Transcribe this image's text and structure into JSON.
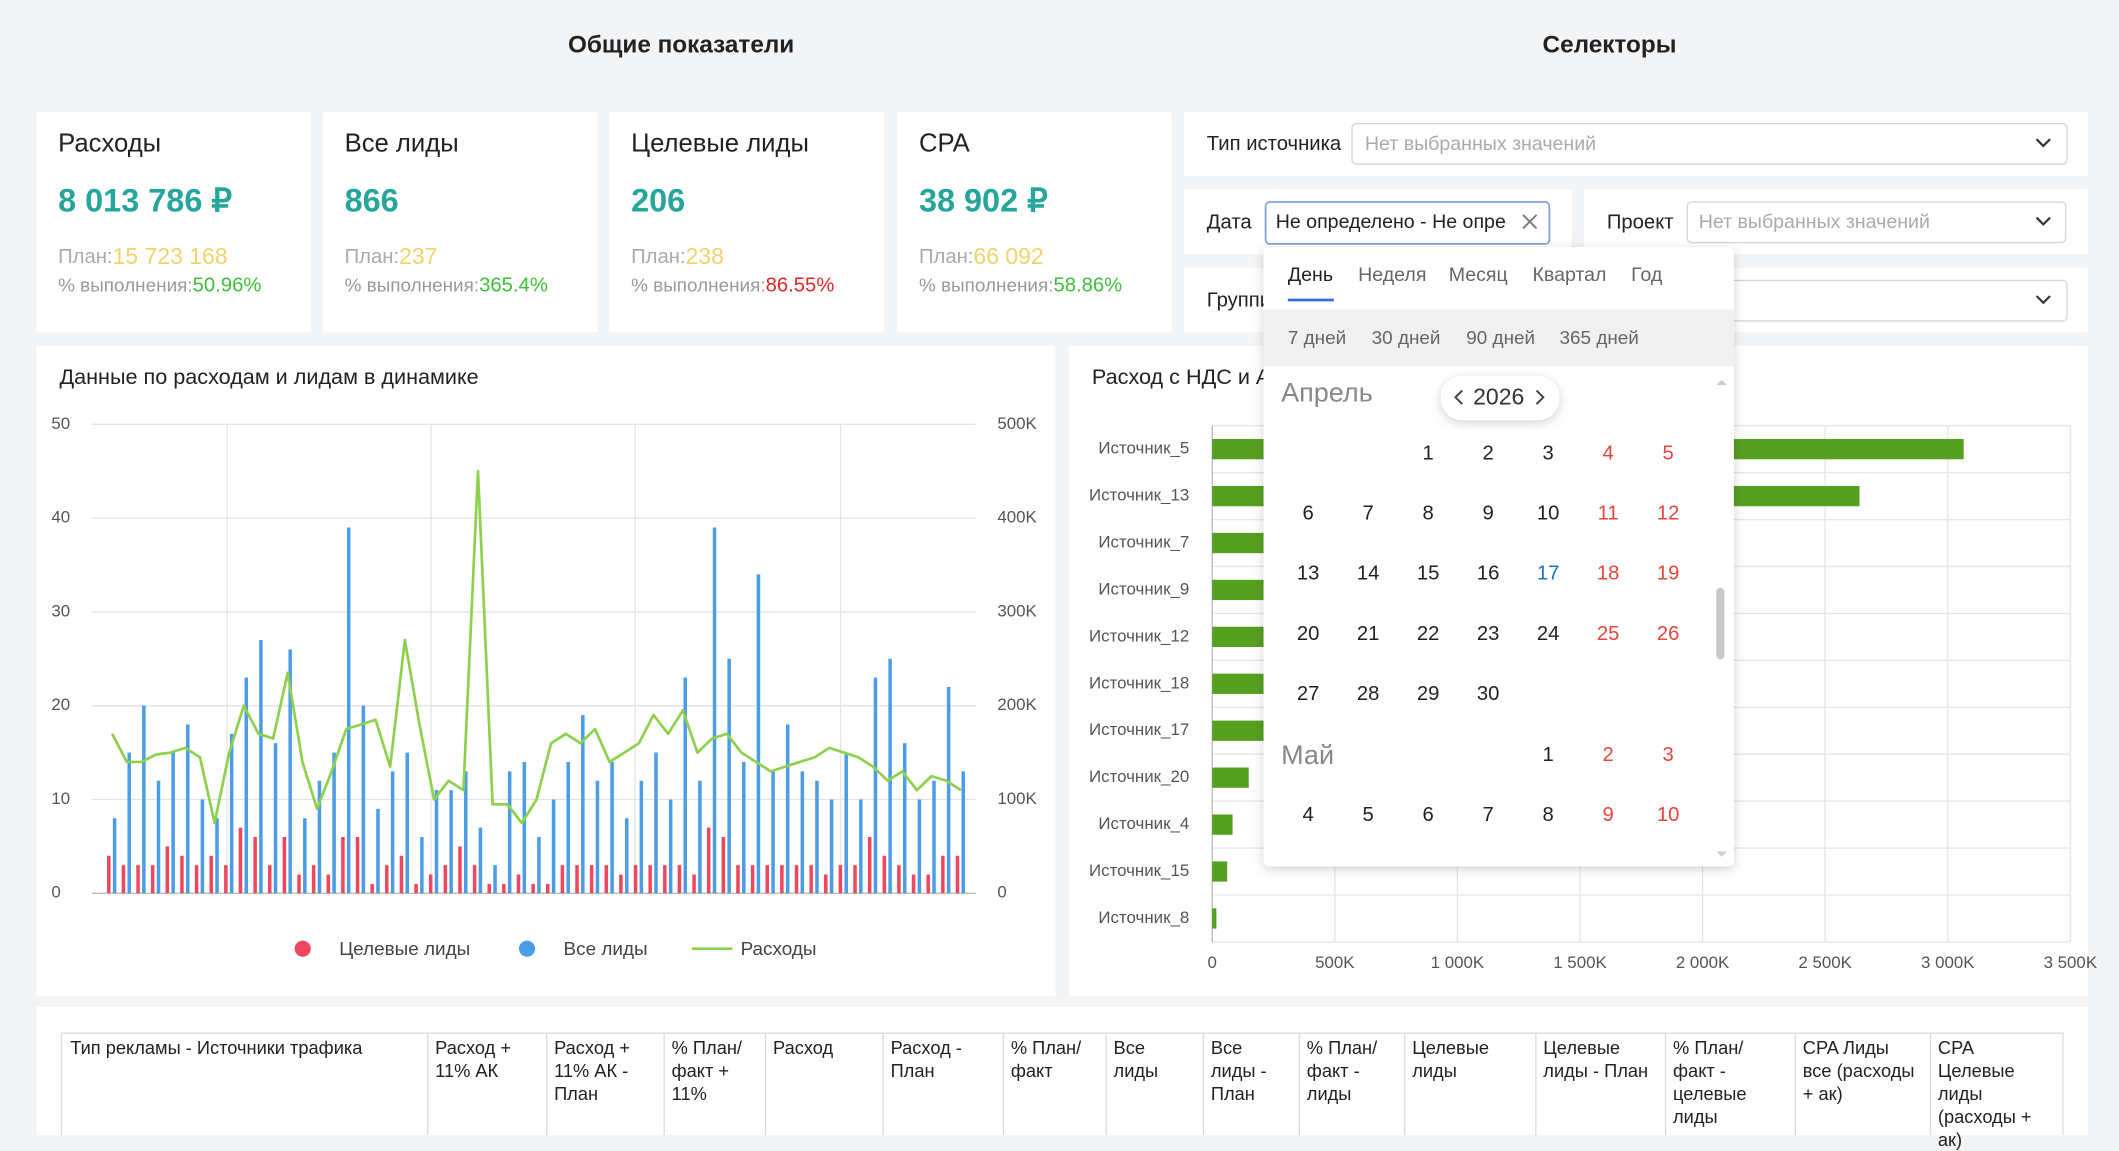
{
  "headers": {
    "overview": "Общие показатели",
    "selectors": "Селекторы"
  },
  "kpis": [
    {
      "title": "Расходы",
      "value": "8 013 786 ₽",
      "plan_label": "План:",
      "plan": "15 723 168",
      "pct_label": "% выполнения:",
      "pct": "50.96%",
      "pct_color": "#3fbf3a"
    },
    {
      "title": "Все лиды",
      "value": "866",
      "plan_label": "План:",
      "plan": "237",
      "pct_label": "% выполнения:",
      "pct": "365.4%",
      "pct_color": "#3fbf3a"
    },
    {
      "title": "Целевые лиды",
      "value": "206",
      "plan_label": "План:",
      "plan": "238",
      "pct_label": "% выполнения:",
      "pct": "86.55%",
      "pct_color": "#e2262c"
    },
    {
      "title": "CPA",
      "value": "38 902 ₽",
      "plan_label": "План:",
      "plan": "66 092",
      "pct_label": "% выполнения:",
      "pct": "58.86%",
      "pct_color": "#3fbf3a"
    }
  ],
  "selectors": {
    "source_type": {
      "label": "Тип источника",
      "placeholder": "Нет выбранных значений"
    },
    "date": {
      "label": "Дата",
      "value": "Не определено - Не определено"
    },
    "project": {
      "label": "Проект",
      "placeholder": "Нет выбранных значений"
    },
    "group": {
      "label": "Группировка"
    }
  },
  "calendar": {
    "tabs": [
      "День",
      "Неделя",
      "Месяц",
      "Квартал",
      "Год"
    ],
    "presets": [
      "7 дней",
      "30 дней",
      "90 дней",
      "365 дней"
    ],
    "year": "2026",
    "months": [
      {
        "name": "Апрель",
        "days": [
          1,
          2,
          3,
          4,
          5,
          6,
          7,
          8,
          9,
          10,
          11,
          12,
          13,
          14,
          15,
          16,
          17,
          18,
          19,
          20,
          21,
          22,
          23,
          24,
          25,
          26,
          27,
          28,
          29,
          30
        ]
      },
      {
        "name": "Май",
        "days": [
          1,
          2,
          3,
          4,
          5,
          6,
          7,
          8,
          9,
          10
        ]
      }
    ]
  },
  "table": {
    "headers": [
      "Тип рекламы - Источники трафика",
      "Расход + 11% АК",
      "Расход + 11% АК - План",
      "% План/ факт + 11%",
      "Расход",
      "Расход - План",
      "% План/ факт",
      "Все лиды",
      "Все лиды - План",
      "% План/ факт - лиды",
      "Целевые лиды",
      "Целевые лиды - План",
      "% План/ факт - целевые лиды",
      "CPA Лиды все (расходы + ак)",
      "CPA Целевые лиды (расходы + ак)"
    ]
  },
  "chart_data": [
    {
      "type": "combo",
      "title": "Данные по расходам и лидам в динамике",
      "ylim": [
        0,
        50
      ],
      "yticks": [
        0,
        10,
        20,
        30,
        40,
        50
      ],
      "y2lim": [
        0,
        500000
      ],
      "y2ticks": [
        0,
        {
          "value": 100000,
          "label": "100K"
        },
        {
          "value": 200000,
          "label": "200K"
        },
        {
          "value": 300000,
          "label": "300K"
        },
        {
          "value": 400000,
          "label": "400K"
        },
        {
          "value": 500000,
          "label": "500K"
        }
      ],
      "grid": true,
      "series": [
        {
          "name": "Целевые лиды",
          "type": "bar",
          "color": "#f0475f",
          "values": [
            4,
            3,
            3,
            3,
            5,
            4,
            3,
            4,
            3,
            7,
            6,
            3,
            6,
            2,
            3,
            2,
            6,
            6,
            1,
            3,
            4,
            1,
            2,
            3,
            5,
            3,
            1,
            1,
            2,
            1,
            1,
            3,
            3,
            3,
            3,
            2,
            3,
            3,
            3,
            3,
            2,
            7,
            6,
            3,
            3,
            3,
            3,
            3,
            3,
            2,
            3,
            3,
            6,
            4,
            3,
            2,
            2,
            4,
            4
          ]
        },
        {
          "name": "Все лиды",
          "type": "bar",
          "color": "#4a9de6",
          "values": [
            8,
            15,
            20,
            12,
            15,
            18,
            10,
            8,
            17,
            23,
            27,
            16,
            26,
            8,
            12,
            15,
            39,
            20,
            9,
            13,
            15,
            6,
            11,
            11,
            13,
            7,
            3,
            13,
            14,
            6,
            10,
            14,
            19,
            12,
            14,
            8,
            12,
            15,
            10,
            23,
            12,
            39,
            25,
            14,
            34,
            13,
            18,
            13,
            12,
            10,
            15,
            10,
            23,
            25,
            16,
            10,
            12,
            22,
            13
          ]
        },
        {
          "name": "Расходы",
          "type": "line",
          "axis": "y2",
          "color": "#8ed14f",
          "values": [
            170000,
            140000,
            140000,
            148000,
            150000,
            155000,
            145000,
            75000,
            150000,
            200000,
            170000,
            165000,
            235000,
            140000,
            90000,
            130000,
            175000,
            180000,
            185000,
            135000,
            270000,
            180000,
            100000,
            120000,
            110000,
            450000,
            95000,
            95000,
            75000,
            100000,
            160000,
            170000,
            160000,
            175000,
            140000,
            150000,
            160000,
            190000,
            170000,
            195000,
            150000,
            165000,
            170000,
            150000,
            140000,
            130000,
            135000,
            140000,
            145000,
            155000,
            150000,
            145000,
            135000,
            120000,
            130000,
            110000,
            125000,
            120000,
            110000
          ]
        }
      ]
    },
    {
      "type": "hbar",
      "title": "Расход с НДС и АК",
      "color": "#56a020",
      "categories": [
        "Источник_5",
        "Источник_13",
        "Источник_7",
        "Источник_9",
        "Источник_12",
        "Источник_18",
        "Источник_17",
        "Источник_20",
        "Источник_4",
        "Источник_15",
        "Источник_8"
      ],
      "values": [
        3065000,
        2640000,
        1800000,
        1500000,
        1200000,
        900000,
        700000,
        149000,
        83000,
        61000,
        17000
      ],
      "xlim": [
        0,
        3500000
      ],
      "xticks": [
        0,
        {
          "value": 500000,
          "label": "500K"
        },
        {
          "value": 1000000,
          "label": "1 000K"
        },
        {
          "value": 1500000,
          "label": "1 500K"
        },
        {
          "value": 2000000,
          "label": "2 000K"
        },
        {
          "value": 2500000,
          "label": "2 500K"
        },
        {
          "value": 3000000,
          "label": "3 000K"
        },
        {
          "value": 3500000,
          "label": "3 500K"
        }
      ],
      "grid": true
    }
  ]
}
